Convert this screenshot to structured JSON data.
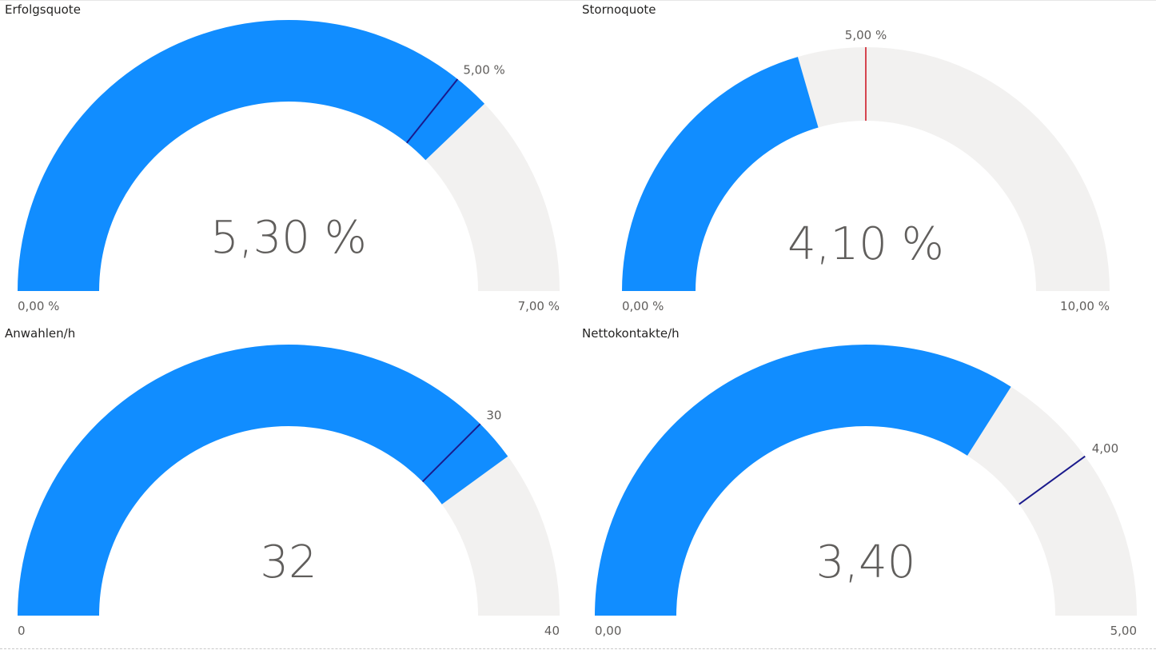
{
  "colors": {
    "fill": "#118dff",
    "track": "#f2f1f0",
    "target_default": "#1a1a8c",
    "target_storno": "#d64550",
    "text": "#605e5c",
    "title": "#252423"
  },
  "chart_data": [
    {
      "type": "gauge",
      "title": "Erfolgsquote",
      "value": 5.3,
      "value_label": "5,30 %",
      "min": 0,
      "min_label": "0,00 %",
      "max": 7,
      "max_label": "7,00 %",
      "target": 5,
      "target_label": "5,00 %"
    },
    {
      "type": "gauge",
      "title": "Stornoquote",
      "value": 4.1,
      "value_label": "4,10 %",
      "min": 0,
      "min_label": "0,00 %",
      "max": 10,
      "max_label": "10,00 %",
      "target": 5,
      "target_label": "5,00 %"
    },
    {
      "type": "gauge",
      "title": "Anwahlen/h",
      "value": 32,
      "value_label": "32",
      "min": 0,
      "min_label": "0",
      "max": 40,
      "max_label": "40",
      "target": 30,
      "target_label": "30"
    },
    {
      "type": "gauge",
      "title": "Nettokontakte/h",
      "value": 3.4,
      "value_label": "3,40",
      "min": 0,
      "min_label": "0,00",
      "max": 5,
      "max_label": "5,00",
      "target": 4,
      "target_label": "4,00"
    }
  ]
}
